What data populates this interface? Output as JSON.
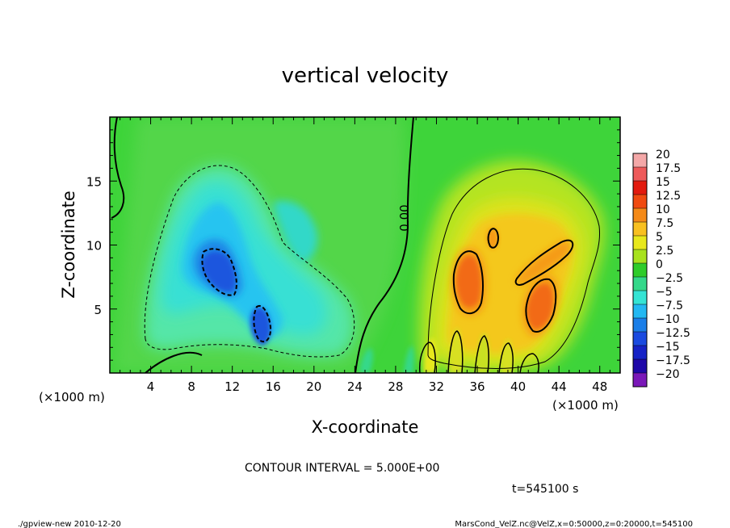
{
  "chart_data": {
    "type": "heatmap",
    "title": "vertical velocity",
    "xlabel": "X-coordinate",
    "ylabel": "Z-coordinate",
    "x_unit_left": "(×1000 m)",
    "x_unit_right": "(×1000 m)",
    "xlim": [
      0,
      50
    ],
    "ylim": [
      0,
      20
    ],
    "x_ticks": [
      "4",
      "8",
      "12",
      "16",
      "20",
      "24",
      "28",
      "32",
      "36",
      "40",
      "44",
      "48"
    ],
    "y_ticks": [
      "5",
      "10",
      "15"
    ],
    "x_tick_values": [
      4,
      8,
      12,
      16,
      20,
      24,
      28,
      32,
      36,
      40,
      44,
      48
    ],
    "y_tick_values": [
      5,
      10,
      15
    ],
    "colorbar": {
      "levels": [
        "20",
        "17.5",
        "15",
        "12.5",
        "10",
        "7.5",
        "5",
        "2.5",
        "0",
        "−2.5",
        "−5",
        "−7.5",
        "−10",
        "−12.5",
        "−15",
        "−17.5",
        "−20"
      ],
      "colors": [
        "#f4a8a8",
        "#ee5a5a",
        "#e21a0e",
        "#f04a10",
        "#f58a18",
        "#f8c020",
        "#e8e81c",
        "#a8e21e",
        "#2ecc2a",
        "#34d88a",
        "#34e4d4",
        "#22b8f2",
        "#1a7ee8",
        "#1a4ae0",
        "#1622c6",
        "#1e08a8",
        "#7a18b8"
      ]
    },
    "contour_interval_text": "CONTOUR INTERVAL = 5.000E+00",
    "contour_label": "0.00",
    "features": [
      {
        "sign": "negative",
        "label": "downdraft",
        "x": 11,
        "z": 9,
        "value": -10
      },
      {
        "sign": "negative",
        "label": "downdraft",
        "x": 15,
        "z": 4.5,
        "value": -10
      },
      {
        "sign": "positive",
        "label": "updraft",
        "x": 34,
        "z": 7.5,
        "value": 10
      },
      {
        "sign": "positive",
        "label": "updraft",
        "x": 41.5,
        "z": 5.5,
        "value": 10
      }
    ]
  },
  "time_text": "t=545100 s",
  "footer_left": "./gpview-new  2010-12-20",
  "footer_right": "MarsCond_VelZ.nc@VelZ,x=0:50000,z=0:20000,t=545100"
}
